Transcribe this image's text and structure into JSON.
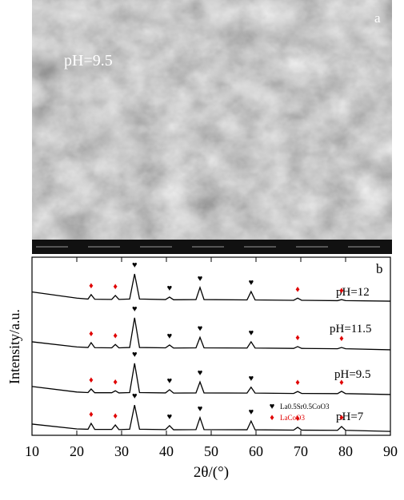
{
  "sem_image": {
    "label": "a",
    "sample": "pH=9.5"
  },
  "chart_data": {
    "type": "line",
    "panel_label": "b",
    "xlabel": "2θ/(°)",
    "ylabel": "Intensity/a.u.",
    "xlim": [
      10,
      90
    ],
    "xticks": [
      10,
      20,
      30,
      40,
      50,
      60,
      70,
      80,
      90
    ],
    "ylim": [
      0,
      100
    ],
    "x": [
      10,
      20,
      22.5,
      23.2,
      24,
      27.8,
      28.6,
      29.4,
      31.8,
      32.9,
      34,
      39.8,
      40.7,
      41.6,
      46.6,
      47.5,
      48.4,
      58,
      58.9,
      59.8,
      68.4,
      69.3,
      70.2,
      78.2,
      79.1,
      80,
      90
    ],
    "series": [
      {
        "name": "pH=12",
        "color": "#000000",
        "values": [
          80.5,
          77,
          76.5,
          79,
          76.4,
          76.3,
          78.5,
          76.3,
          76.5,
          90.6,
          76.5,
          76.2,
          77.6,
          76.1,
          76.2,
          83,
          76.2,
          76,
          80.7,
          76,
          75.8,
          77,
          75.8,
          75.6,
          76.2,
          75.6,
          75.3
        ]
      },
      {
        "name": "pH=11.5",
        "color": "#000000",
        "values": [
          52.5,
          49.6,
          49.3,
          52,
          49.2,
          49.1,
          51,
          49.1,
          49.3,
          66,
          49.3,
          49.1,
          50.7,
          49,
          49.1,
          55,
          49.1,
          49,
          52.5,
          49,
          48.8,
          49.8,
          48.8,
          48.6,
          49.3,
          48.6,
          48
        ]
      },
      {
        "name": "pH=9.5",
        "color": "#000000",
        "values": [
          27.4,
          24.3,
          24,
          26,
          23.9,
          23.9,
          25,
          23.8,
          24,
          40.4,
          24,
          23.8,
          25.6,
          23.7,
          23.8,
          30,
          23.8,
          23.7,
          27,
          23.7,
          23.5,
          24.6,
          23.5,
          23.4,
          24.7,
          23.4,
          22.9
        ]
      },
      {
        "name": "pH=7",
        "color": "#000000",
        "values": [
          6.3,
          3.6,
          3.4,
          6.7,
          3.3,
          3.3,
          5.8,
          3.2,
          3.4,
          17,
          3.4,
          3.2,
          5.4,
          3.1,
          3.2,
          9.9,
          3.2,
          3.1,
          8,
          3.1,
          2.9,
          4.5,
          2.9,
          2.8,
          4.9,
          2.8,
          2.2
        ]
      }
    ],
    "phases": [
      {
        "name": "La0.5Sr0.5CoO3",
        "symbol": "♥",
        "color": "#000000",
        "peaks": [
          32.9,
          40.7,
          47.5,
          58.9
        ]
      },
      {
        "name": "LaCoO3",
        "symbol": "♦",
        "color": "#e00000",
        "peaks": [
          23.2,
          28.6,
          69.3,
          79.1
        ]
      }
    ]
  }
}
